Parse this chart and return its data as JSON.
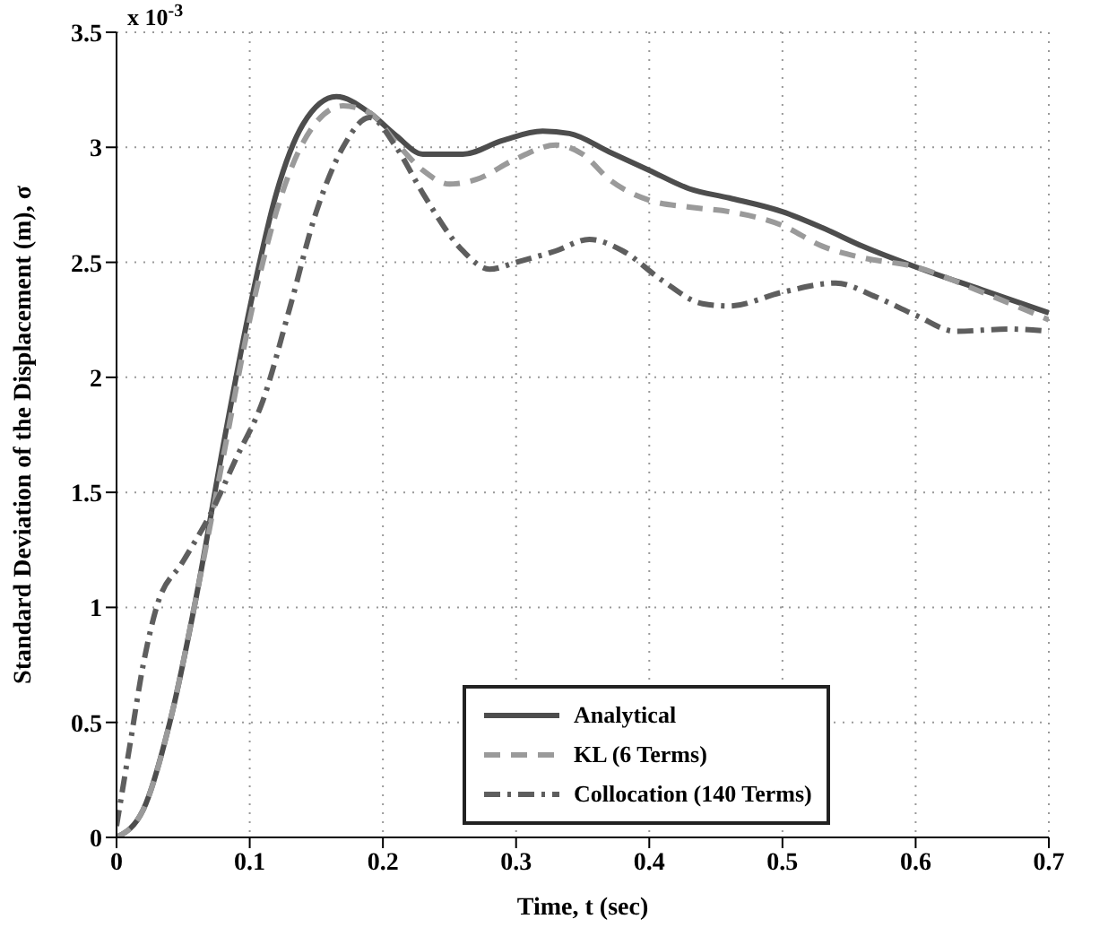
{
  "chart_data": {
    "type": "line",
    "xlabel": "Time, t (sec)",
    "ylabel": "Standard Deviation of the Displacement (m), σ",
    "annotations": [
      "x 10$^{-3}$"
    ],
    "xlim": [
      0,
      0.7
    ],
    "xticks": [
      0,
      0.1,
      0.2,
      0.3,
      0.4,
      0.5,
      0.6,
      0.7
    ],
    "ylim": [
      0,
      3.5
    ],
    "yticks": [
      0,
      0.5,
      1,
      1.5,
      2,
      2.5,
      3,
      3.5
    ],
    "grid": true,
    "legend": "bottom",
    "marker": "none",
    "series": [
      {
        "name": "Analytical",
        "color": "#4d4d4d",
        "line_style": "solid",
        "x": [
          0,
          0.02,
          0.04,
          0.06,
          0.08,
          0.1,
          0.12,
          0.14,
          0.165,
          0.19,
          0.21,
          0.23,
          0.26,
          0.29,
          0.32,
          0.34,
          0.37,
          0.4,
          0.43,
          0.46,
          0.5,
          0.53,
          0.56,
          0.6,
          0.65,
          0.7
        ],
        "values": [
          0,
          0.12,
          0.5,
          1.05,
          1.7,
          2.3,
          2.8,
          3.1,
          3.22,
          3.15,
          3.05,
          2.97,
          2.97,
          3.03,
          3.07,
          3.06,
          2.98,
          2.9,
          2.82,
          2.78,
          2.72,
          2.65,
          2.57,
          2.48,
          2.38,
          2.28
        ]
      },
      {
        "name": "KL (6 Terms)",
        "color": "#9a9a9a",
        "line_style": "dashed",
        "x": [
          0,
          0.02,
          0.04,
          0.06,
          0.08,
          0.1,
          0.12,
          0.14,
          0.17,
          0.19,
          0.21,
          0.23,
          0.25,
          0.27,
          0.3,
          0.33,
          0.35,
          0.37,
          0.4,
          0.43,
          0.46,
          0.5,
          0.53,
          0.56,
          0.6,
          0.65,
          0.7
        ],
        "values": [
          0,
          0.12,
          0.5,
          1.05,
          1.65,
          2.25,
          2.72,
          3.02,
          3.18,
          3.15,
          3.02,
          2.9,
          2.84,
          2.86,
          2.95,
          3.01,
          2.97,
          2.86,
          2.77,
          2.74,
          2.72,
          2.66,
          2.57,
          2.52,
          2.48,
          2.37,
          2.25
        ]
      },
      {
        "name": "Collocation (140 Terms)",
        "color": "#5e5e5e",
        "line_style": "dashdot",
        "x": [
          0,
          0.01,
          0.02,
          0.03,
          0.05,
          0.07,
          0.09,
          0.11,
          0.13,
          0.15,
          0.17,
          0.19,
          0.21,
          0.23,
          0.26,
          0.28,
          0.3,
          0.33,
          0.355,
          0.38,
          0.41,
          0.44,
          0.46,
          0.5,
          0.54,
          0.57,
          0.6,
          0.63,
          0.67,
          0.7
        ],
        "values": [
          0.05,
          0.4,
          0.75,
          1.0,
          1.2,
          1.4,
          1.65,
          1.9,
          2.3,
          2.72,
          3.0,
          3.13,
          3.0,
          2.8,
          2.55,
          2.47,
          2.5,
          2.55,
          2.6,
          2.55,
          2.42,
          2.32,
          2.31,
          2.37,
          2.41,
          2.35,
          2.27,
          2.2,
          2.21,
          2.2
        ]
      }
    ]
  }
}
